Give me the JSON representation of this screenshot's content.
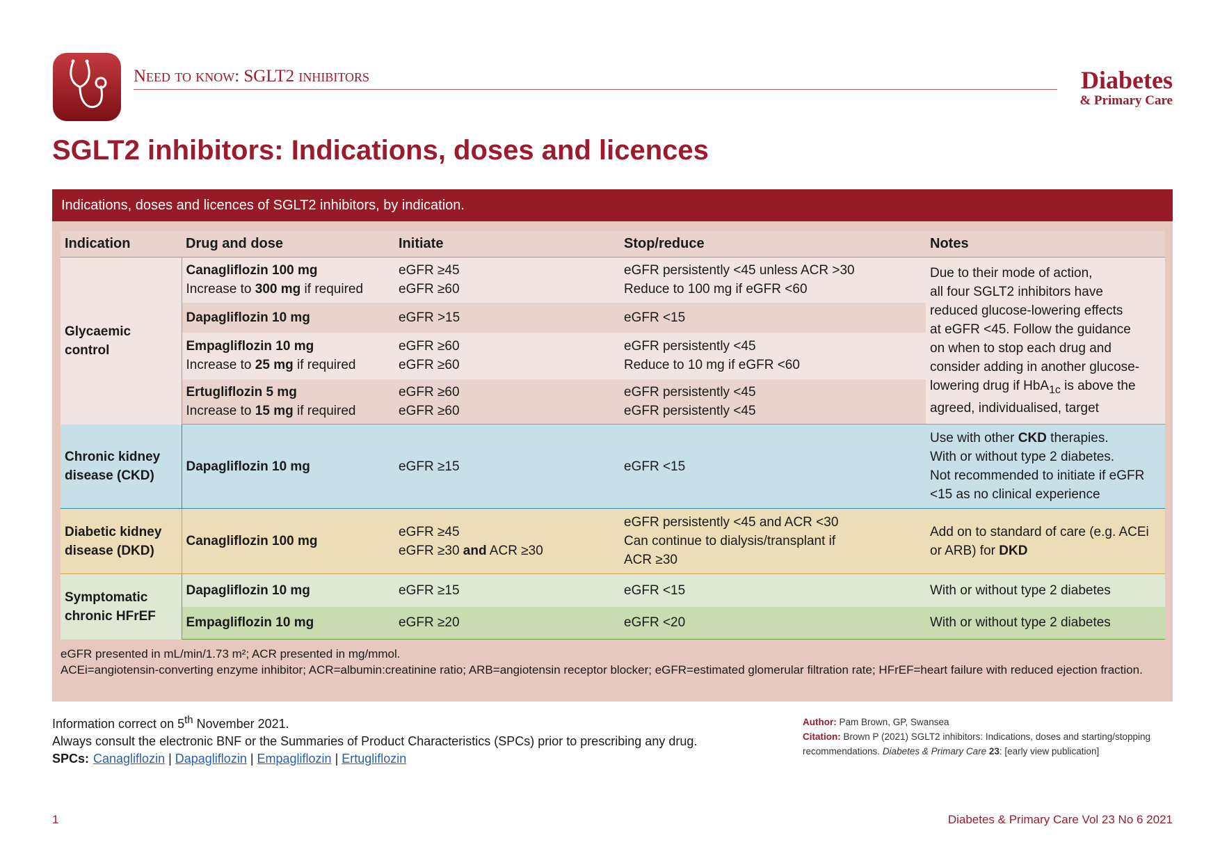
{
  "header": {
    "kicker": "Need to know: SGLT2 inhibitors",
    "brand": "Diabetes",
    "brand_sub": "& Primary Care"
  },
  "title": "SGLT2 inhibitors: Indications, doses and licences",
  "table": {
    "caption": "Indications, doses and licences of SGLT2 inhibitors, by indication.",
    "columns": [
      "Indication",
      "Drug and dose",
      "Initiate",
      "Stop/reduce",
      "Notes"
    ],
    "groups": [
      {
        "indication": [
          "Glycaemic",
          "control"
        ],
        "rows": [
          {
            "drug": [
              [
                {
                  "bold": "Canagliflozin 100 mg"
                }
              ],
              [
                "Increase to ",
                {
                  "bold": "300 mg"
                },
                " if required"
              ]
            ],
            "initiate": [
              "eGFR ≥45",
              "eGFR ≥60"
            ],
            "stop": [
              "eGFR persistently <45 unless ACR >30",
              "Reduce to 100 mg if eGFR <60"
            ]
          },
          {
            "drug": [
              [
                {
                  "bold": "Dapagliflozin 10 mg"
                }
              ]
            ],
            "initiate": [
              "eGFR >15"
            ],
            "stop": [
              "eGFR <15"
            ]
          },
          {
            "drug": [
              [
                {
                  "bold": "Empagliflozin 10 mg"
                }
              ],
              [
                "Increase to ",
                {
                  "bold": "25 mg"
                },
                " if required"
              ]
            ],
            "initiate": [
              "eGFR ≥60",
              "eGFR ≥60"
            ],
            "stop": [
              "eGFR persistently <45",
              "Reduce to 10 mg if eGFR <60"
            ]
          },
          {
            "drug": [
              [
                {
                  "bold": "Ertugliflozin 5 mg"
                }
              ],
              [
                "Increase to ",
                {
                  "bold": "15 mg"
                },
                " if required"
              ]
            ],
            "initiate": [
              "eGFR ≥60",
              "eGFR ≥60"
            ],
            "stop": [
              "eGFR persistently <45",
              "eGFR persistently <45"
            ]
          }
        ],
        "notes": [
          "Due to their mode of action,",
          "all four SGLT2 inhibitors have",
          "reduced glucose-lowering effects",
          "at eGFR <45. Follow the guidance",
          "on when to stop each drug and",
          "consider adding in another glucose-",
          [
            "lowering drug if HbA",
            {
              "sub": "1c"
            },
            " is above the"
          ],
          "agreed, individualised, target"
        ]
      },
      {
        "indication": [
          "Chronic kidney",
          "disease (CKD)"
        ],
        "rows": [
          {
            "drug": [
              [
                {
                  "bold": "Dapagliflozin 10 mg"
                }
              ]
            ],
            "initiate": [
              "eGFR ≥15"
            ],
            "stop": [
              "eGFR <15"
            ]
          }
        ],
        "notes": [
          [
            "Use with other ",
            {
              "bold": "CKD"
            },
            " therapies."
          ],
          "With or without type 2 diabetes.",
          "Not recommended to initiate if eGFR",
          "<15 as no clinical experience"
        ]
      },
      {
        "indication": [
          "Diabetic kidney",
          "disease (DKD)"
        ],
        "rows": [
          {
            "drug": [
              [
                {
                  "bold": "Canagliflozin 100 mg"
                }
              ]
            ],
            "initiate": [
              "eGFR ≥45",
              [
                "eGFR ≥30 ",
                {
                  "bold": "and"
                },
                " ACR ≥30"
              ]
            ],
            "stop": [
              "eGFR persistently <45 and ACR <30",
              "Can continue to dialysis/transplant if",
              "ACR ≥30"
            ]
          }
        ],
        "notes": [
          "Add on to standard of care (e.g. ACEi",
          [
            "or ARB) for ",
            {
              "bold": "DKD"
            }
          ]
        ]
      },
      {
        "indication": [
          "Symptomatic",
          "chronic HFrEF"
        ],
        "rows": [
          {
            "drug": [
              [
                {
                  "bold": "Dapagliflozin 10 mg"
                }
              ]
            ],
            "initiate": [
              "eGFR ≥15"
            ],
            "stop": [
              "eGFR <15"
            ],
            "notes": [
              "With or without type 2 diabetes"
            ]
          },
          {
            "drug": [
              [
                {
                  "bold": "Empagliflozin 10 mg"
                }
              ]
            ],
            "initiate": [
              "eGFR ≥20"
            ],
            "stop": [
              "eGFR <20"
            ],
            "notes": [
              "With or without type 2 diabetes"
            ]
          }
        ]
      }
    ],
    "footnotes": [
      "eGFR presented in mL/min/1.73 m²; ACR presented in mg/mmol.",
      "ACEi=angiotensin-converting enzyme inhibitor; ACR=albumin:creatinine ratio; ARB=angiotensin receptor blocker; eGFR=estimated glomerular filtration rate; HFrEF=heart failure with reduced ejection fraction."
    ]
  },
  "info": [
    [
      "Information correct on 5",
      {
        "sup": "th"
      },
      " November 2021."
    ],
    "Always consult the electronic BNF or the Summaries of Product Characteristics (SPCs) prior to prescribing any drug.",
    [
      {
        "bold": "SPCs:"
      },
      {
        "link": "Canagliflozin"
      },
      " | ",
      {
        "link": "Dapagliflozin"
      },
      " | ",
      {
        "link": "Empagliflozin"
      },
      " | ",
      {
        "link": "Ertugliflozin"
      }
    ]
  ],
  "credits": [
    [
      {
        "label": "Author:"
      },
      " Pam Brown, GP, Swansea"
    ],
    [
      {
        "label": "Citation:"
      },
      " Brown P (2021) SGLT2 inhibitors: Indications, doses and starting/stopping recommendations. ",
      {
        "italic": "Diabetes & Primary Care"
      },
      {
        "bold": " 23"
      },
      ": [early view publication]"
    ]
  ],
  "footer": {
    "page": "1",
    "journal": "Diabetes & Primary Care Vol 23 No 6 2021"
  }
}
